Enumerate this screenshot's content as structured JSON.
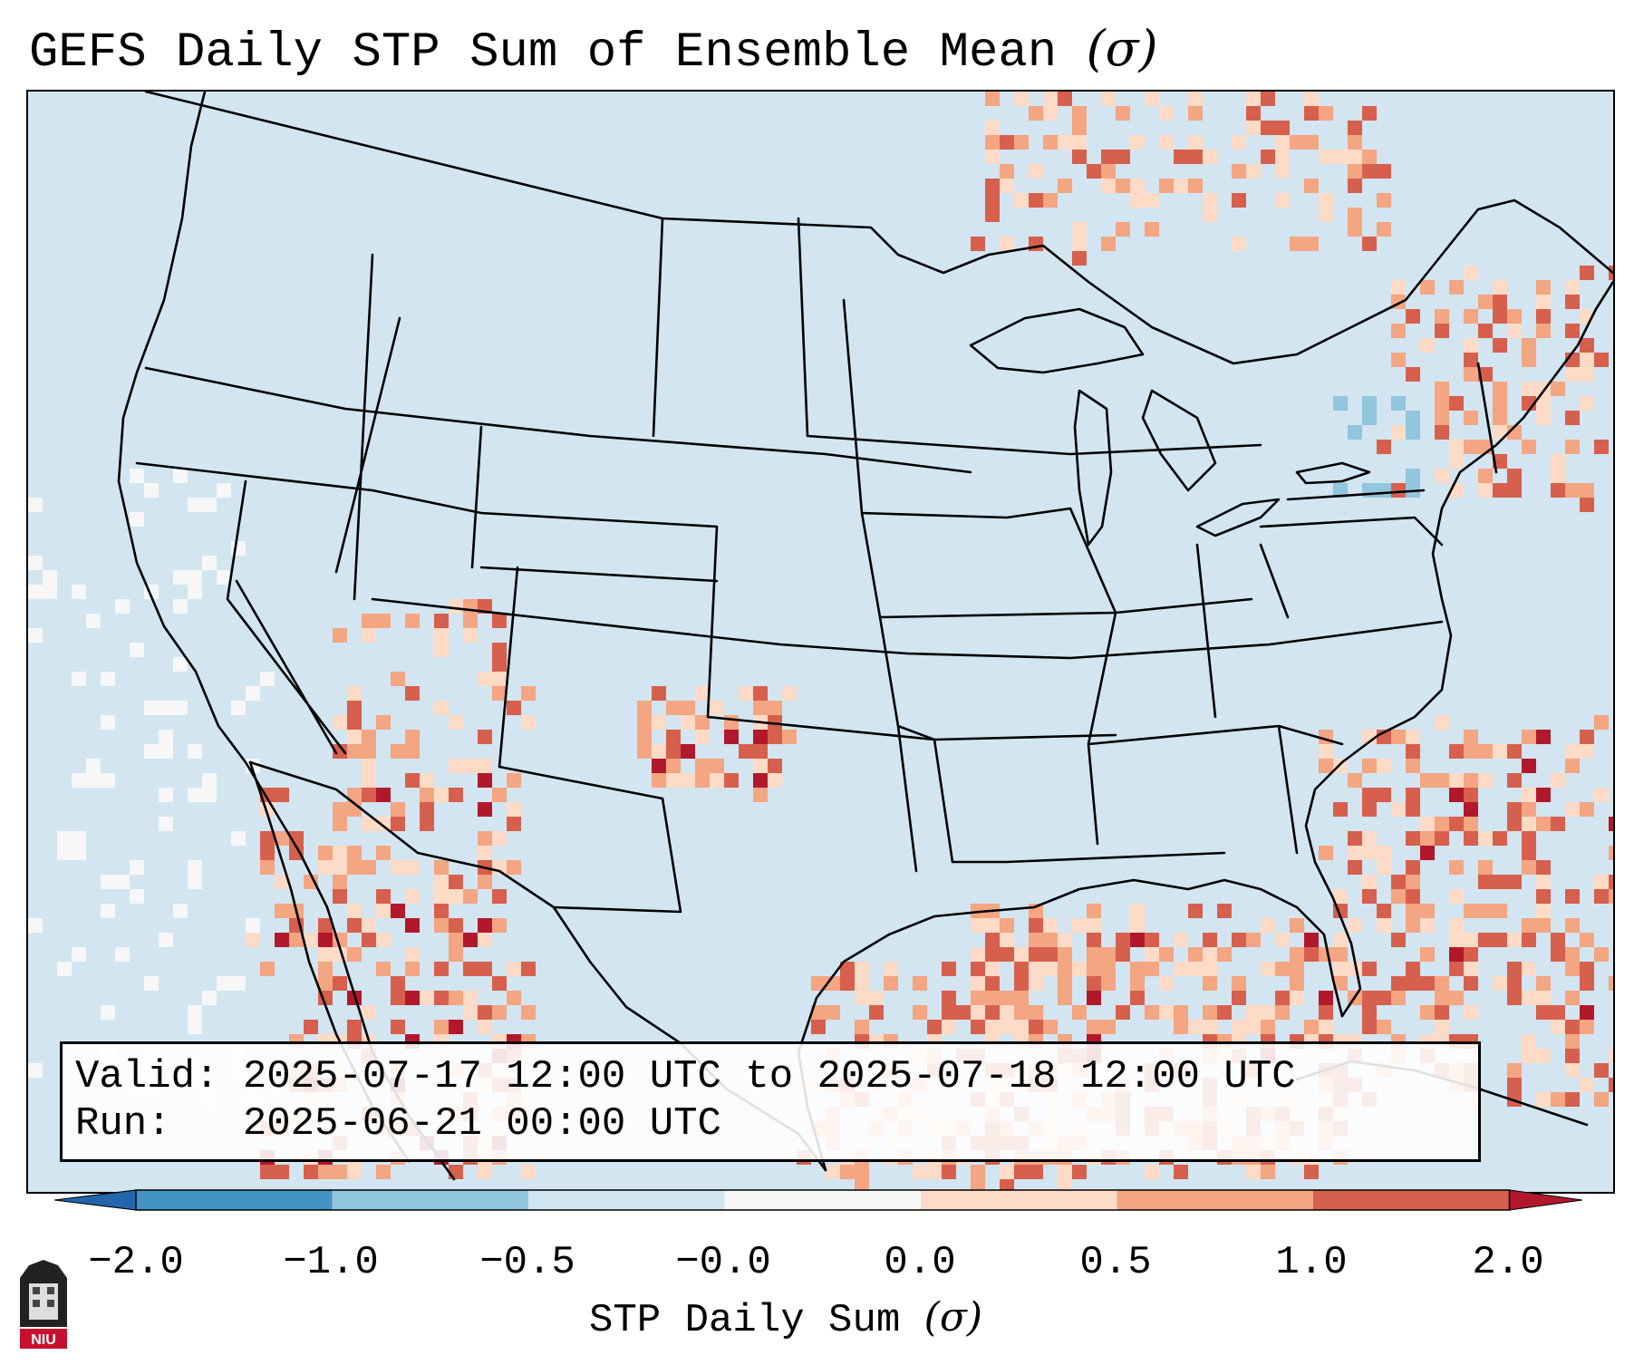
{
  "title": {
    "text": "GEFS Daily STP Sum of Ensemble Mean",
    "unit": "(σ)"
  },
  "info": {
    "valid_label": "Valid:",
    "valid_value": "2025-07-17 12:00 UTC to 2025-07-18 12:00 UTC",
    "run_label": "Run:",
    "run_value": "2025-06-21 00:00 UTC"
  },
  "colorbar": {
    "label": "STP Daily Sum",
    "unit": "(σ)",
    "ticks": [
      "−2.0",
      "−1.0",
      "−0.5",
      "−0.0",
      "0.0",
      "0.5",
      "1.0",
      "2.0"
    ],
    "colors": [
      "#4393c3",
      "#92c5de",
      "#d1e5f0",
      "#f7f7f7",
      "#fddbc7",
      "#f4a582",
      "#d6604d"
    ],
    "under_color": "#2166ac",
    "over_color": "#b2182b"
  },
  "map": {
    "background_color": "#d2e5f1",
    "region": "Continental United States, southern Canada, northern Mexico, Gulf of Mexico, western Atlantic"
  },
  "logo": {
    "text": "NIU"
  }
}
